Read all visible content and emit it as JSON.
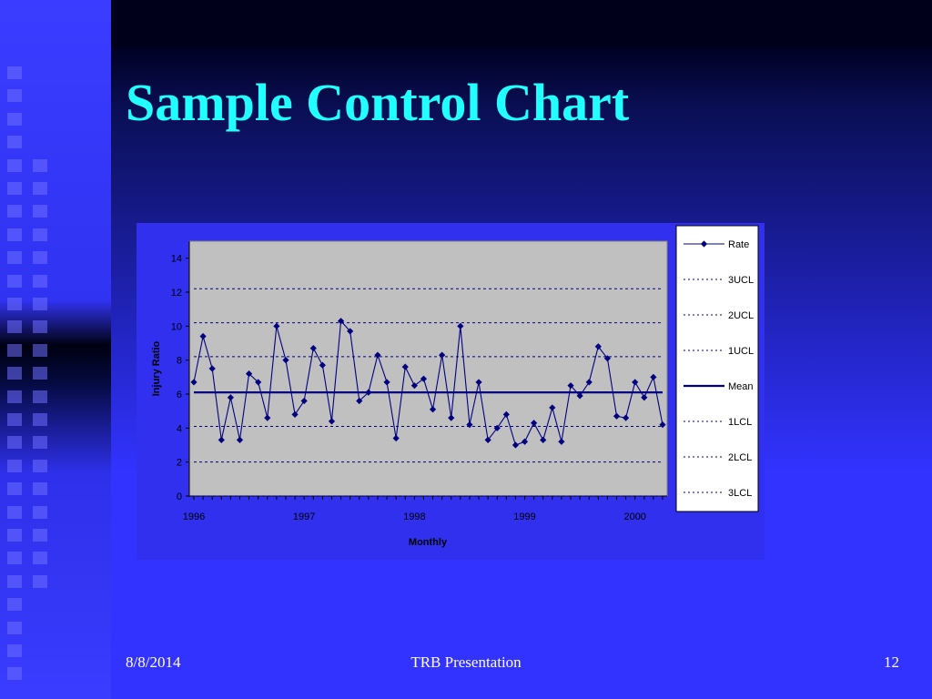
{
  "slide": {
    "title": "Sample Control Chart",
    "footer_date": "8/8/2014",
    "footer_center": "TRB Presentation",
    "page_number": "12"
  },
  "colors": {
    "title": "#22ffff",
    "series": "#000080",
    "plot_bg": "#c0c0c0",
    "background": "#3333ff"
  },
  "chart_data": {
    "type": "line",
    "title": "",
    "xlabel": "Monthly",
    "ylabel": "Injury Ratio",
    "ylim": [
      0,
      15
    ],
    "yticks": [
      0,
      2,
      4,
      6,
      8,
      10,
      12,
      14
    ],
    "x_tick_labels": [
      "1996",
      "1997",
      "1998",
      "1999",
      "2000"
    ],
    "grid": false,
    "legend_position": "right",
    "series": [
      {
        "name": "Rate",
        "style": "line-diamond",
        "values": [
          6.7,
          9.4,
          7.5,
          3.3,
          5.8,
          3.3,
          7.2,
          6.7,
          4.6,
          10.0,
          8.0,
          4.8,
          5.6,
          8.7,
          7.7,
          4.4,
          10.3,
          9.7,
          5.6,
          6.1,
          8.3,
          6.7,
          3.4,
          7.6,
          6.5,
          6.9,
          5.1,
          8.3,
          4.6,
          10.0,
          4.2,
          6.7,
          3.3,
          4.0,
          4.8,
          3.0,
          3.2,
          4.3,
          3.3,
          5.2,
          3.2,
          6.5,
          5.9,
          6.7,
          8.8,
          8.1,
          4.7,
          4.6,
          6.7,
          5.8,
          7.0,
          4.2
        ]
      },
      {
        "name": "3UCL",
        "style": "dotted",
        "value": 12.2
      },
      {
        "name": "2UCL",
        "style": "dotted",
        "value": 10.2
      },
      {
        "name": "1UCL",
        "style": "dotted",
        "value": 8.2
      },
      {
        "name": "Mean",
        "style": "solid",
        "value": 6.1
      },
      {
        "name": "1LCL",
        "style": "dotted",
        "value": 4.1
      },
      {
        "name": "2LCL",
        "style": "dotted",
        "value": 2.0
      },
      {
        "name": "3LCL",
        "style": "dotted",
        "value": 0.0
      }
    ]
  }
}
